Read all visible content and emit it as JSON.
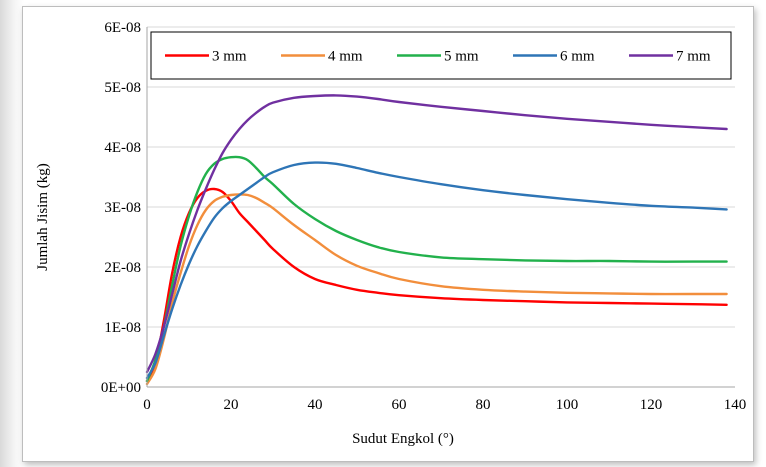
{
  "chart_data": {
    "type": "line",
    "title": "",
    "xlabel": "Sudut Engkol (°)",
    "ylabel": "Jumlah Jisim (kg)",
    "xlim": [
      0,
      140
    ],
    "ylim": [
      0,
      6e-08
    ],
    "x_ticks": [
      "0",
      "20",
      "40",
      "60",
      "80",
      "100",
      "120",
      "140"
    ],
    "y_ticks": [
      "0E+00",
      "1E-08",
      "2E-08",
      "3E-08",
      "4E-08",
      "5E-08",
      "6E-08"
    ],
    "grid": "horizontal",
    "legend_position": "top",
    "x": [
      0,
      2,
      4,
      6,
      8,
      10,
      12,
      14,
      16,
      18,
      20,
      22,
      24,
      26,
      28,
      30,
      35,
      40,
      45,
      50,
      55,
      60,
      70,
      80,
      90,
      100,
      110,
      120,
      130,
      138
    ],
    "series": [
      {
        "name": "3 mm",
        "color": "#ff0000",
        "values": [
          1e-09,
          4e-09,
          1.1e-08,
          1.9e-08,
          2.5e-08,
          2.9e-08,
          3.15e-08,
          3.27e-08,
          3.3e-08,
          3.25e-08,
          3.1e-08,
          2.9e-08,
          2.75e-08,
          2.6e-08,
          2.45e-08,
          2.3e-08,
          2e-08,
          1.8e-08,
          1.7e-08,
          1.62e-08,
          1.57e-08,
          1.53e-08,
          1.48e-08,
          1.45e-08,
          1.43e-08,
          1.41e-08,
          1.4e-08,
          1.39e-08,
          1.38e-08,
          1.37e-08
        ]
      },
      {
        "name": "4 mm",
        "color": "#f28e3c",
        "values": [
          5e-10,
          3e-09,
          8e-09,
          1.4e-08,
          1.9e-08,
          2.35e-08,
          2.7e-08,
          2.95e-08,
          3.1e-08,
          3.17e-08,
          3.2e-08,
          3.21e-08,
          3.2e-08,
          3.15e-08,
          3.07e-08,
          2.98e-08,
          2.7e-08,
          2.45e-08,
          2.2e-08,
          2.02e-08,
          1.9e-08,
          1.8e-08,
          1.68e-08,
          1.62e-08,
          1.59e-08,
          1.57e-08,
          1.56e-08,
          1.55e-08,
          1.55e-08,
          1.55e-08
        ]
      },
      {
        "name": "5 mm",
        "color": "#22b14c",
        "values": [
          1e-09,
          4.5e-09,
          1e-08,
          1.7e-08,
          2.35e-08,
          2.85e-08,
          3.25e-08,
          3.55e-08,
          3.72e-08,
          3.8e-08,
          3.83e-08,
          3.83e-08,
          3.78e-08,
          3.65e-08,
          3.5e-08,
          3.38e-08,
          3.05e-08,
          2.8e-08,
          2.6e-08,
          2.45e-08,
          2.33e-08,
          2.25e-08,
          2.16e-08,
          2.13e-08,
          2.11e-08,
          2.1e-08,
          2.1e-08,
          2.09e-08,
          2.09e-08,
          2.09e-08
        ]
      },
      {
        "name": "6 mm",
        "color": "#2e75b6",
        "values": [
          1.5e-09,
          4e-09,
          8.5e-09,
          1.3e-08,
          1.7e-08,
          2.05e-08,
          2.35e-08,
          2.6e-08,
          2.82e-08,
          2.98e-08,
          3.1e-08,
          3.2e-08,
          3.3e-08,
          3.4e-08,
          3.5e-08,
          3.58e-08,
          3.7e-08,
          3.74e-08,
          3.72e-08,
          3.65e-08,
          3.57e-08,
          3.5e-08,
          3.38e-08,
          3.28e-08,
          3.2e-08,
          3.13e-08,
          3.07e-08,
          3.02e-08,
          2.99e-08,
          2.96e-08
        ]
      },
      {
        "name": "7 mm",
        "color": "#7030a0",
        "values": [
          2.5e-09,
          5.5e-09,
          1e-08,
          1.55e-08,
          2.1e-08,
          2.55e-08,
          2.95e-08,
          3.3e-08,
          3.62e-08,
          3.9e-08,
          4.12e-08,
          4.3e-08,
          4.45e-08,
          4.57e-08,
          4.67e-08,
          4.74e-08,
          4.82e-08,
          4.85e-08,
          4.86e-08,
          4.84e-08,
          4.8e-08,
          4.75e-08,
          4.67e-08,
          4.6e-08,
          4.53e-08,
          4.47e-08,
          4.42e-08,
          4.37e-08,
          4.33e-08,
          4.3e-08
        ]
      }
    ]
  }
}
